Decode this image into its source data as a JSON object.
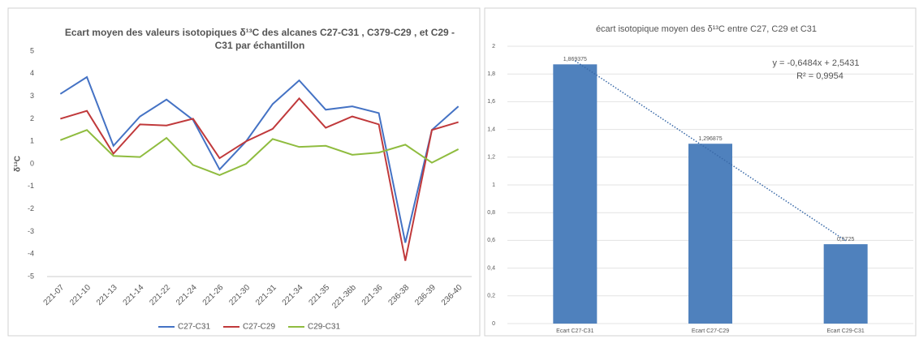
{
  "chart_data": [
    {
      "type": "line",
      "title": "Ecart moyen des valeurs isotopiques δ¹³C des alcanes C27-C31 , C379-C29 , et C29 - C31  par  échantillon",
      "y_label": "δ¹³C",
      "categories": [
        "221-07",
        "221-10",
        "221-13",
        "221-14",
        "221-22",
        "221-24",
        "221-26",
        "221-30",
        "221-31",
        "221-34",
        "221-35",
        "221-36b",
        "221-36",
        "236-38",
        "236-39",
        "236-40"
      ],
      "series": [
        {
          "name": "C27-C31",
          "color": "#4472c4",
          "values": [
            3.1,
            3.85,
            0.8,
            2.1,
            2.85,
            1.95,
            -0.25,
            1.0,
            2.65,
            3.7,
            2.4,
            2.55,
            2.25,
            -3.5,
            1.5,
            2.55
          ]
        },
        {
          "name": "C27-C29",
          "color": "#c0393b",
          "values": [
            2.0,
            2.35,
            0.45,
            1.75,
            1.7,
            2.0,
            0.25,
            1.0,
            1.55,
            2.9,
            1.6,
            2.1,
            1.75,
            -4.3,
            1.5,
            1.85
          ]
        },
        {
          "name": "C29-C31",
          "color": "#8fbc3f",
          "values": [
            1.05,
            1.5,
            0.35,
            0.3,
            1.15,
            -0.05,
            -0.5,
            0.0,
            1.1,
            0.75,
            0.8,
            0.4,
            0.5,
            0.85,
            0.05,
            0.65
          ]
        }
      ],
      "ylim": [
        -5,
        5
      ],
      "yticks": [
        -5,
        -4,
        -3,
        -2,
        -1,
        0,
        1,
        2,
        3,
        4,
        5
      ],
      "grid": false,
      "legend": "bottom"
    },
    {
      "type": "bar",
      "title": "écart isotopique moyen des δ¹³C entre C27, C29 et C31",
      "color": "#4f81bd",
      "categories": [
        "Ecart C27-C31",
        "Ecart C27-C29",
        "Ecart C29-C31"
      ],
      "values": [
        1.869375,
        1.296875,
        0.5725
      ],
      "value_labels": [
        "1,869375",
        "1,296875",
        "0,5725"
      ],
      "ylim": [
        0,
        2
      ],
      "yticks": [
        0,
        {
          "value": 0.2,
          "label": "0,2"
        },
        {
          "value": 0.4,
          "label": "0,4"
        },
        {
          "value": 0.6,
          "label": "0,6"
        },
        {
          "value": 0.8,
          "label": "0,8"
        },
        1,
        {
          "value": 1.2,
          "label": "1,2"
        },
        {
          "value": 1.4,
          "label": "1,4"
        },
        {
          "value": 1.6,
          "label": "1,6"
        },
        {
          "value": 1.8,
          "label": "1,8"
        },
        2
      ],
      "grid": true,
      "trendline": {
        "slope": -0.6484,
        "intercept": 2.5431,
        "label": "y = -0,6484x + 2,5431",
        "r2_label": "R² = 0,9954"
      }
    }
  ]
}
